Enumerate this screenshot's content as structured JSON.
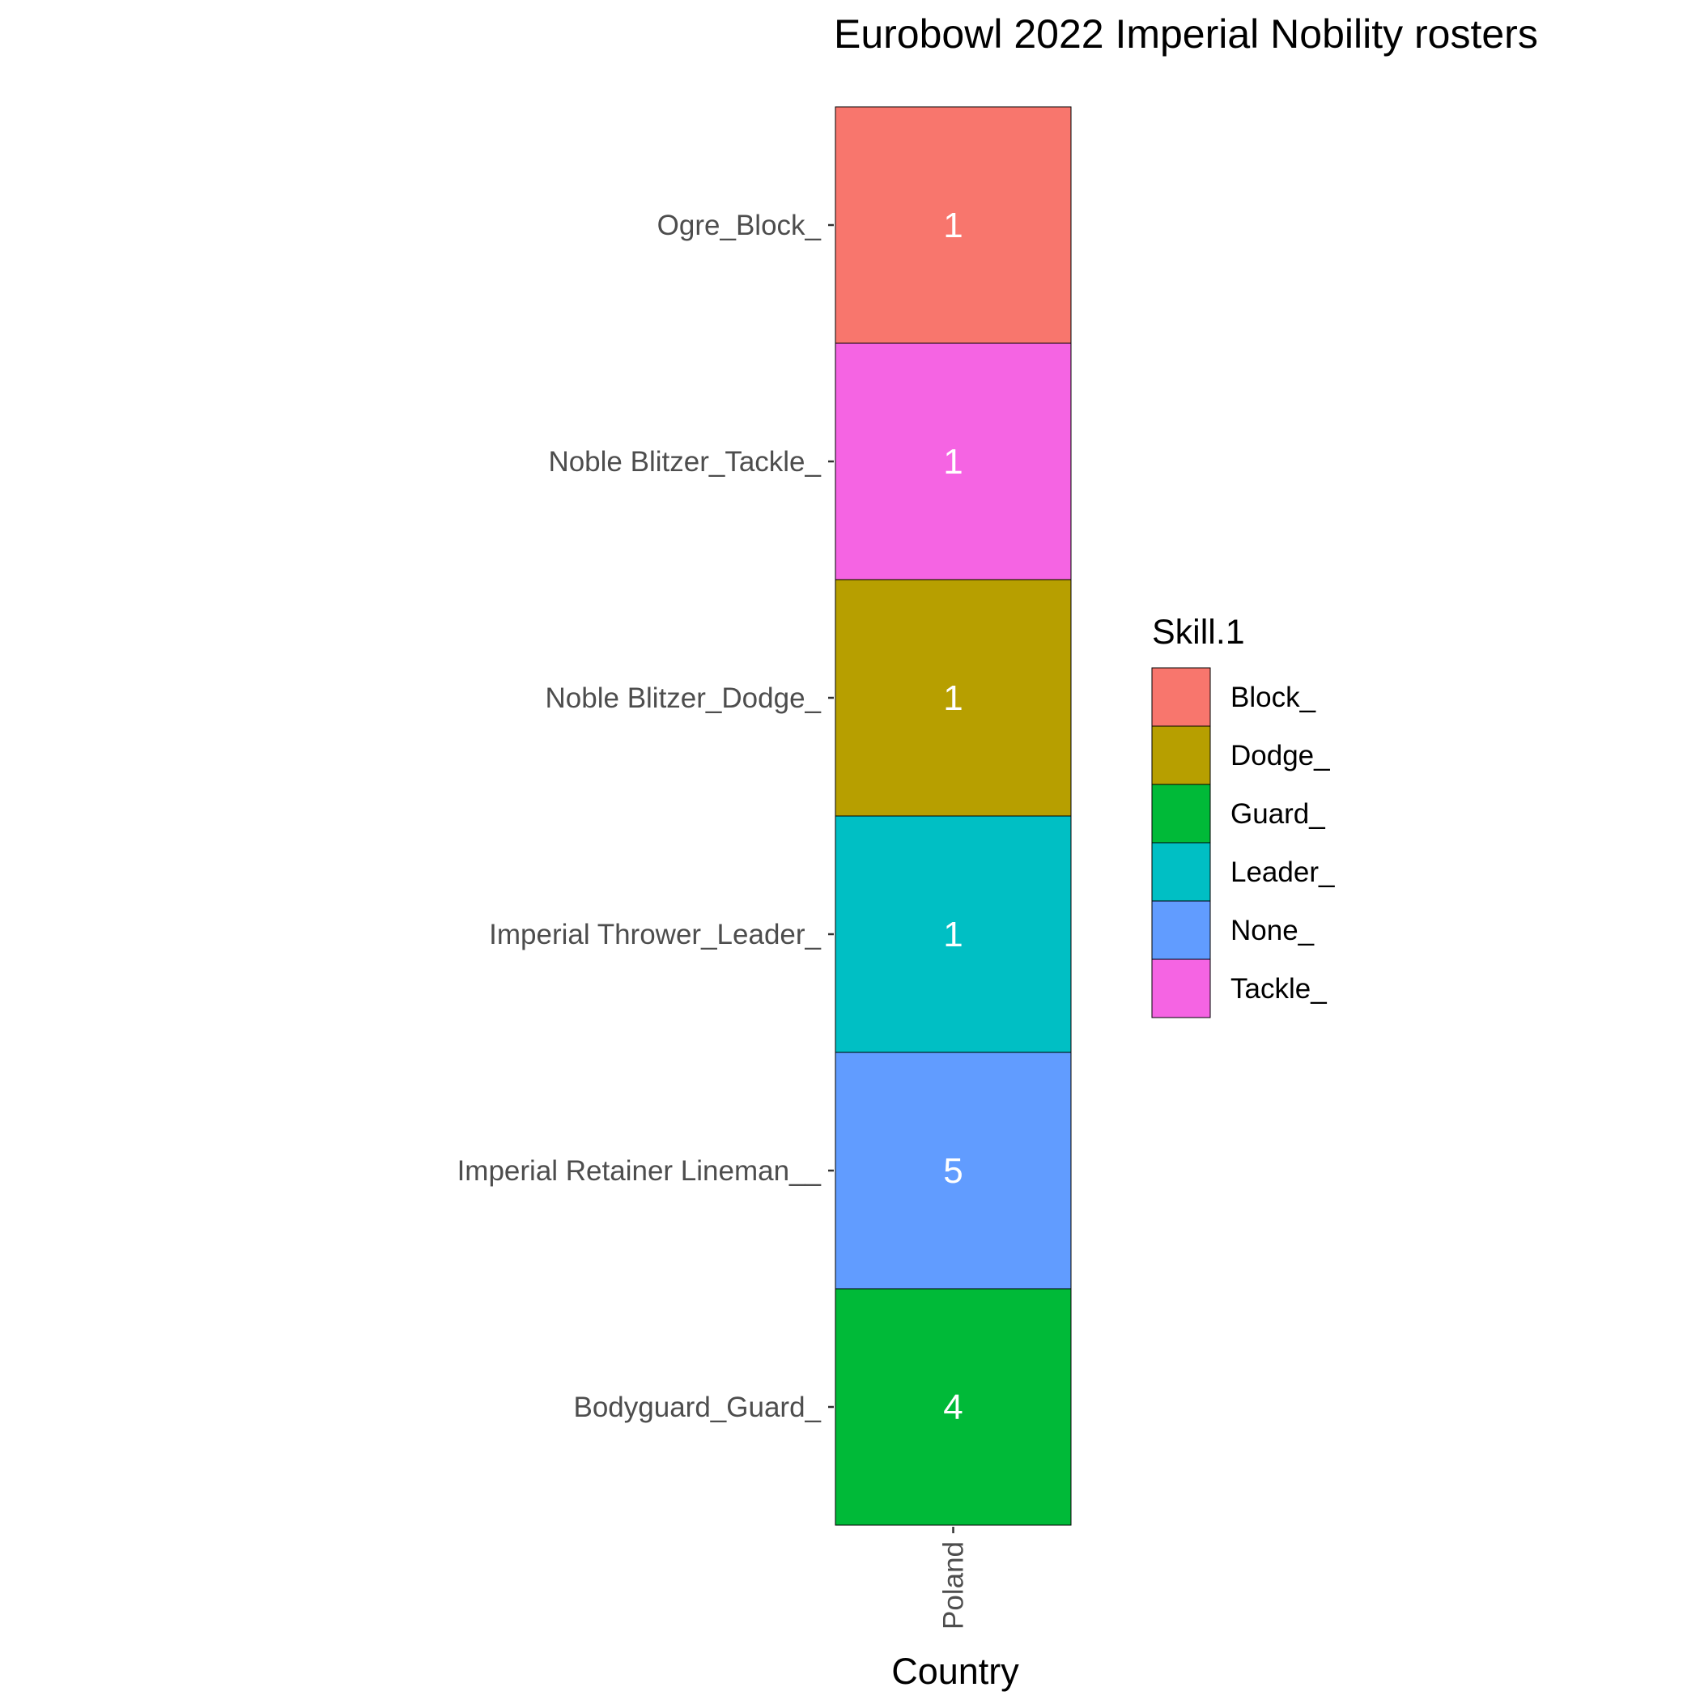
{
  "chart_data": {
    "type": "heatmap",
    "title": "Eurobowl 2022 Imperial Nobility rosters",
    "xlabel": "Country",
    "ylabel": "",
    "x_categories": [
      "Poland"
    ],
    "y_categories": [
      "Ogre_Block_",
      "Noble Blitzer_Tackle_",
      "Noble Blitzer_Dodge_",
      "Imperial Thrower_Leader_",
      "Imperial Retainer Lineman__",
      "Bodyguard_Guard_"
    ],
    "cells": [
      {
        "x": "Poland",
        "y": "Ogre_Block_",
        "value": 1,
        "fill": "Block_"
      },
      {
        "x": "Poland",
        "y": "Noble Blitzer_Tackle_",
        "value": 1,
        "fill": "Tackle_"
      },
      {
        "x": "Poland",
        "y": "Noble Blitzer_Dodge_",
        "value": 1,
        "fill": "Dodge_"
      },
      {
        "x": "Poland",
        "y": "Imperial Thrower_Leader_",
        "value": 1,
        "fill": "Leader_"
      },
      {
        "x": "Poland",
        "y": "Imperial Retainer Lineman__",
        "value": 5,
        "fill": "None_"
      },
      {
        "x": "Poland",
        "y": "Bodyguard_Guard_",
        "value": 4,
        "fill": "Guard_"
      }
    ],
    "legend": {
      "title": "Skill.1",
      "position": "right",
      "entries": [
        {
          "label": "Block_",
          "color": "#F8766D"
        },
        {
          "label": "Dodge_",
          "color": "#B79F00"
        },
        {
          "label": "Guard_",
          "color": "#00BA38"
        },
        {
          "label": "Leader_",
          "color": "#00BFC4"
        },
        {
          "label": "None_",
          "color": "#619CFF"
        },
        {
          "label": "Tackle_",
          "color": "#F564E3"
        }
      ]
    },
    "grid": false
  }
}
